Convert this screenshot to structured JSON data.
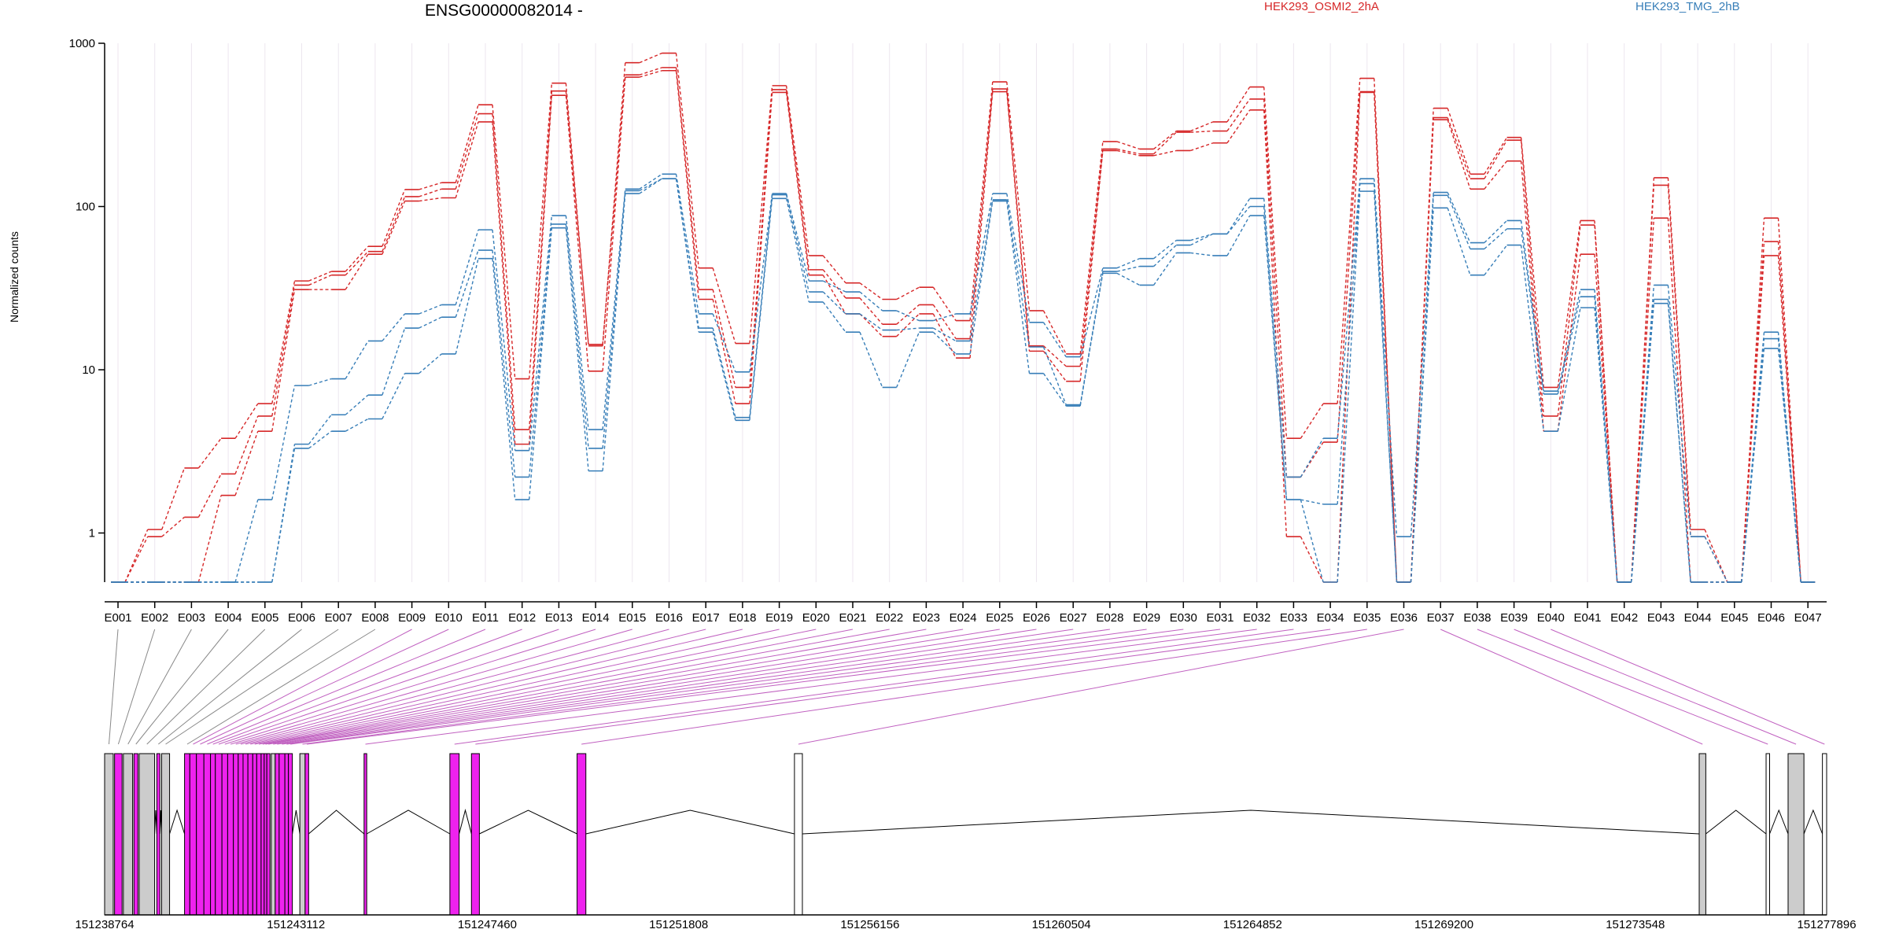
{
  "chart_data": {
    "type": "line",
    "title": "ENSG00000082014 -",
    "ylabel": "Normalized counts",
    "yscale": "log",
    "ylim": [
      0.5,
      1000
    ],
    "yticks": [
      "1",
      "10",
      "100",
      "1000"
    ],
    "grid": true,
    "legend": "top",
    "categories": [
      "E001",
      "E002",
      "E003",
      "E004",
      "E005",
      "E006",
      "E007",
      "E008",
      "E009",
      "E010",
      "E011",
      "E012",
      "E013",
      "E014",
      "E015",
      "E016",
      "E017",
      "E018",
      "E019",
      "E020",
      "E021",
      "E022",
      "E023",
      "E024",
      "E025",
      "E026",
      "E027",
      "E028",
      "E029",
      "E030",
      "E031",
      "E032",
      "E033",
      "E034",
      "E035",
      "E036",
      "E037",
      "E038",
      "E039",
      "E040",
      "E041",
      "E042",
      "E043",
      "E044",
      "E045",
      "E046",
      "E047"
    ],
    "series": [
      {
        "name": "HEK293_OSMI2_2hA",
        "color": "#d62728",
        "replicates": [
          [
            0.5,
            1.05,
            2.5,
            3.8,
            6.2,
            35,
            40,
            57,
            127,
            140,
            420,
            8.8,
            570,
            14,
            760,
            870,
            42,
            14.5,
            550,
            50,
            34,
            27,
            32,
            20,
            580,
            23,
            12.5,
            250,
            225,
            290,
            330,
            540,
            3.8,
            6.2,
            610,
            0.5,
            400,
            158,
            265,
            7.8,
            82,
            0.5,
            150,
            1.05,
            0.5,
            85,
            0.5
          ],
          [
            0.5,
            0.95,
            1.25,
            2.3,
            5.2,
            33,
            38,
            53,
            115,
            128,
            370,
            4.3,
            510,
            14.3,
            640,
            710,
            31,
            7.8,
            520,
            41,
            27.5,
            19,
            25,
            15.5,
            525,
            14,
            10.5,
            225,
            210,
            285,
            290,
            455,
            2.2,
            3.6,
            505,
            0.5,
            350,
            148,
            255,
            5.2,
            77,
            0.5,
            135,
            0.95,
            0.5,
            61,
            0.5
          ],
          [
            0.5,
            0.5,
            0.5,
            1.7,
            4.2,
            31,
            31,
            51,
            108,
            113,
            330,
            3.5,
            480,
            9.8,
            620,
            680,
            27,
            6.2,
            500,
            38,
            22,
            16,
            22,
            11.8,
            505,
            13,
            8.5,
            220,
            205,
            220,
            245,
            390,
            0.95,
            0.5,
            500,
            0.5,
            340,
            128,
            190,
            4.2,
            51,
            0.5,
            85,
            0.5,
            0.5,
            50,
            0.5
          ]
        ]
      },
      {
        "name": "HEK293_TMG_2hB",
        "color": "#377eb8",
        "replicates": [
          [
            0.5,
            0.5,
            0.5,
            0.5,
            1.6,
            8,
            8.8,
            15,
            22,
            25,
            72,
            3.2,
            88,
            4.3,
            128,
            158,
            22,
            9.7,
            120,
            35,
            30,
            23,
            20,
            22,
            120,
            19.5,
            12,
            42,
            48,
            62,
            68,
            112,
            2.2,
            3.8,
            148,
            0.95,
            122,
            60,
            82,
            7.4,
            31,
            0.5,
            33,
            0.95,
            0.5,
            17,
            0.5
          ],
          [
            0.5,
            0.5,
            0.5,
            0.5,
            0.5,
            3.5,
            5.3,
            7,
            18,
            21,
            54,
            2.2,
            78,
            3.3,
            125,
            148,
            18,
            5.1,
            118,
            30,
            22,
            17.5,
            18,
            15,
            110,
            13.8,
            6.1,
            40,
            43,
            58,
            68,
            100,
            1.6,
            1.5,
            138,
            0.5,
            117,
            55,
            73,
            7.1,
            28,
            0.5,
            27,
            0.5,
            0.5,
            15.5,
            0.5
          ],
          [
            0.5,
            0.5,
            0.5,
            0.5,
            0.5,
            3.3,
            4.2,
            5,
            9.5,
            12.5,
            48,
            1.6,
            74,
            2.4,
            120,
            148,
            17,
            4.9,
            112,
            26,
            17,
            7.8,
            17,
            12.5,
            108,
            9.5,
            6,
            39,
            33,
            52,
            50,
            88,
            1.6,
            0.5,
            124,
            0.5,
            98,
            38,
            58,
            4.2,
            24,
            0.5,
            25.5,
            0.5,
            0.5,
            13.5,
            0.5
          ]
        ]
      }
    ],
    "gene_model": {
      "coordinate_ticks": [
        "151238764",
        "151243112",
        "151247460",
        "151251808",
        "151256156",
        "151260504",
        "151264852",
        "151269200",
        "151273548",
        "151277896"
      ],
      "coord_range": [
        151238764,
        151277896
      ],
      "exon_spans": [
        [
          151238764,
          151238960
        ],
        [
          151238990,
          151239160
        ],
        [
          151239190,
          151239400
        ],
        [
          151239430,
          151239520
        ],
        [
          151239550,
          151239900
        ],
        [
          151239950,
          151240020
        ],
        [
          151240060,
          151240240
        ],
        [
          151240580,
          151240700
        ],
        [
          151240700,
          151240850
        ],
        [
          151240850,
          151241020
        ],
        [
          151241020,
          151241170
        ],
        [
          151241170,
          151241280
        ],
        [
          151241280,
          151241430
        ],
        [
          151241430,
          151241560
        ],
        [
          151241560,
          151241690
        ],
        [
          151241690,
          151241800
        ],
        [
          151241800,
          151241910
        ],
        [
          151241910,
          151242020
        ],
        [
          151242020,
          151242130
        ],
        [
          151242130,
          151242220
        ],
        [
          151242220,
          151242320
        ],
        [
          151242320,
          151242390
        ],
        [
          151242390,
          151242450
        ],
        [
          151242450,
          151242520
        ],
        [
          151242550,
          151242640
        ],
        [
          151242640,
          151242730
        ],
        [
          151242730,
          151242860
        ],
        [
          151242860,
          151242940
        ],
        [
          151242940,
          151243030
        ],
        [
          151243200,
          151243320
        ],
        [
          151243320,
          151243400
        ],
        [
          151244660,
          151244720
        ],
        [
          151246610,
          151246820
        ],
        [
          151247100,
          151247280
        ],
        [
          151249500,
          151249700
        ],
        [
          151254440,
          151254620
        ],
        [
          151275000,
          151275150
        ],
        [
          151276520,
          151276600
        ],
        [
          151277020,
          151277380
        ],
        [
          151277800,
          151277896
        ]
      ],
      "exon_fill": [
        "#cccccc",
        "#ee22ee",
        "#cccccc",
        "#ee22ee",
        "#cccccc",
        "#ee22ee",
        "#cccccc",
        "#ee22ee",
        "#ee22ee",
        "#ee22ee",
        "#ee22ee",
        "#ee22ee",
        "#ee22ee",
        "#ee22ee",
        "#ee22ee",
        "#ee22ee",
        "#ee22ee",
        "#ee22ee",
        "#ee22ee",
        "#ee22ee",
        "#ee22ee",
        "#ee22ee",
        "#ee22ee",
        "#ee22ee",
        "#cccccc",
        "#ee22ee",
        "#ee22ee",
        "#ee22ee",
        "#ee22ee",
        "#cccccc",
        "#ee22ee",
        "#ee22ee",
        "#ee22ee",
        "#ee22ee",
        "#ee22ee",
        "#ffffff",
        "#cccccc",
        "#ffffff",
        "#cccccc",
        "#ffffff"
      ],
      "connector_highlight": [
        false,
        false,
        false,
        false,
        false,
        false,
        false,
        false,
        true,
        true,
        true,
        true,
        true,
        true,
        true,
        true,
        true,
        true,
        true,
        true,
        true,
        true,
        true,
        true,
        true,
        true,
        true,
        true,
        true,
        true,
        true,
        true,
        true,
        true,
        true,
        true,
        true,
        true,
        true,
        true,
        true,
        false,
        false,
        false,
        false,
        false,
        false
      ]
    }
  }
}
